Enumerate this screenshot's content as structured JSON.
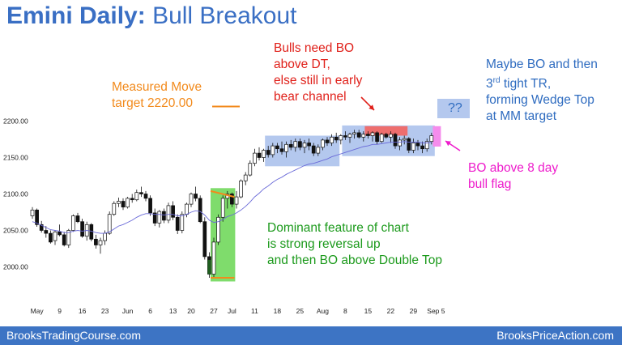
{
  "slide": {
    "title_bold": "Emini Daily:",
    "title_rest": "Bull Breakout"
  },
  "annotations": {
    "measured_move": [
      "Measured Move",
      "target 2220.00"
    ],
    "bulls_need": [
      "Bulls need BO",
      "above DT,",
      "else still in early",
      "bear channel"
    ],
    "maybe_bo": [
      "Maybe BO and then",
      "3",
      "rd",
      " tight TR,",
      "forming Wedge Top",
      "at MM target"
    ],
    "question": "??",
    "bo_above": [
      "BO above 8 day",
      "bull flag"
    ],
    "dominant": [
      "Dominant feature of chart",
      "is strong reversal up",
      "and then BO above Double Top"
    ]
  },
  "colors": {
    "title": "#3a6fc4",
    "orange": "#f28a1c",
    "red": "#e0201a",
    "blue": "#2f6cc0",
    "magenta": "#ee1ccc",
    "green": "#1c9a1c",
    "footer": "#3d74c4",
    "range_box": "#b4c8ee",
    "reversal_box": "#7fdc6c",
    "top_box": "#ee6e6e",
    "bo_box": "#f58cec",
    "ema": "#6a6ad8"
  },
  "footer": {
    "left": "BrooksTradingCourse.com",
    "right": "BrooksPriceAction.com"
  },
  "chart_data": {
    "type": "candlestick",
    "y_ticks": [
      "2000.00",
      "2050.00",
      "2100.00",
      "2150.00",
      "2200.00"
    ],
    "ylim": [
      1975,
      2240
    ],
    "x_ticks": [
      "May",
      "9",
      "16",
      "23",
      "Jun",
      "6",
      "13",
      "20",
      "27",
      "Jul",
      "11",
      "18",
      "25",
      "Aug",
      "8",
      "15",
      "22",
      "29",
      "Sep 5"
    ],
    "x_tick_index": [
      1,
      6,
      11,
      16,
      21,
      26,
      31,
      35,
      40,
      44,
      49,
      54,
      59,
      64,
      69,
      74,
      79,
      84,
      89
    ],
    "bars": [
      [
        2070,
        2082,
        2066,
        2078
      ],
      [
        2078,
        2080,
        2055,
        2058
      ],
      [
        2058,
        2063,
        2047,
        2050
      ],
      [
        2050,
        2056,
        2040,
        2046
      ],
      [
        2046,
        2050,
        2032,
        2034
      ],
      [
        2036,
        2050,
        2030,
        2048
      ],
      [
        2048,
        2058,
        2042,
        2044
      ],
      [
        2044,
        2048,
        2028,
        2030
      ],
      [
        2030,
        2052,
        2026,
        2050
      ],
      [
        2050,
        2072,
        2048,
        2070
      ],
      [
        2070,
        2074,
        2060,
        2062
      ],
      [
        2062,
        2066,
        2040,
        2042
      ],
      [
        2042,
        2062,
        2036,
        2058
      ],
      [
        2058,
        2060,
        2035,
        2038
      ],
      [
        2038,
        2044,
        2025,
        2030
      ],
      [
        2030,
        2040,
        2018,
        2036
      ],
      [
        2036,
        2050,
        2030,
        2046
      ],
      [
        2046,
        2076,
        2044,
        2072
      ],
      [
        2072,
        2090,
        2070,
        2087
      ],
      [
        2087,
        2095,
        2082,
        2090
      ],
      [
        2090,
        2094,
        2078,
        2082
      ],
      [
        2082,
        2096,
        2080,
        2094
      ],
      [
        2094,
        2100,
        2088,
        2092
      ],
      [
        2092,
        2106,
        2090,
        2102
      ],
      [
        2102,
        2110,
        2096,
        2100
      ],
      [
        2100,
        2104,
        2090,
        2094
      ],
      [
        2094,
        2098,
        2070,
        2074
      ],
      [
        2074,
        2080,
        2056,
        2060
      ],
      [
        2060,
        2078,
        2054,
        2076
      ],
      [
        2076,
        2080,
        2060,
        2064
      ],
      [
        2064,
        2088,
        2060,
        2084
      ],
      [
        2084,
        2090,
        2064,
        2068
      ],
      [
        2068,
        2072,
        2045,
        2050
      ],
      [
        2050,
        2076,
        2046,
        2072
      ],
      [
        2072,
        2088,
        2068,
        2086
      ],
      [
        2086,
        2102,
        2082,
        2100
      ],
      [
        2100,
        2110,
        2090,
        2094
      ],
      [
        2094,
        2098,
        2060,
        2062
      ],
      [
        2062,
        2068,
        2010,
        2014
      ],
      [
        2014,
        2020,
        1985,
        1990
      ],
      [
        1990,
        2040,
        1986,
        2034
      ],
      [
        2034,
        2072,
        2030,
        2068
      ],
      [
        2068,
        2098,
        2062,
        2094
      ],
      [
        2094,
        2104,
        2080,
        2100
      ],
      [
        2100,
        2102,
        2082,
        2086
      ],
      [
        2086,
        2104,
        2080,
        2096
      ],
      [
        2096,
        2120,
        2094,
        2118
      ],
      [
        2118,
        2130,
        2112,
        2126
      ],
      [
        2126,
        2146,
        2124,
        2142
      ],
      [
        2142,
        2162,
        2138,
        2156
      ],
      [
        2156,
        2164,
        2146,
        2150
      ],
      [
        2150,
        2162,
        2144,
        2160
      ],
      [
        2160,
        2166,
        2150,
        2154
      ],
      [
        2154,
        2170,
        2150,
        2166
      ],
      [
        2166,
        2170,
        2156,
        2162
      ],
      [
        2162,
        2172,
        2154,
        2158
      ],
      [
        2158,
        2172,
        2150,
        2168
      ],
      [
        2168,
        2174,
        2160,
        2164
      ],
      [
        2164,
        2176,
        2158,
        2172
      ],
      [
        2172,
        2176,
        2160,
        2164
      ],
      [
        2164,
        2174,
        2156,
        2170
      ],
      [
        2170,
        2176,
        2160,
        2166
      ],
      [
        2166,
        2170,
        2152,
        2156
      ],
      [
        2156,
        2168,
        2152,
        2164
      ],
      [
        2164,
        2176,
        2160,
        2174
      ],
      [
        2174,
        2178,
        2166,
        2170
      ],
      [
        2170,
        2182,
        2166,
        2178
      ],
      [
        2178,
        2184,
        2170,
        2174
      ],
      [
        2174,
        2182,
        2168,
        2180
      ],
      [
        2180,
        2186,
        2174,
        2178
      ],
      [
        2178,
        2184,
        2170,
        2182
      ],
      [
        2182,
        2188,
        2176,
        2184
      ],
      [
        2184,
        2188,
        2176,
        2178
      ],
      [
        2178,
        2186,
        2172,
        2182
      ],
      [
        2182,
        2186,
        2176,
        2180
      ],
      [
        2180,
        2186,
        2172,
        2184
      ],
      [
        2184,
        2186,
        2168,
        2172
      ],
      [
        2172,
        2184,
        2170,
        2182
      ],
      [
        2182,
        2184,
        2176,
        2178
      ],
      [
        2178,
        2186,
        2170,
        2182
      ],
      [
        2182,
        2184,
        2162,
        2166
      ],
      [
        2166,
        2178,
        2160,
        2174
      ],
      [
        2174,
        2180,
        2168,
        2176
      ],
      [
        2176,
        2178,
        2156,
        2160
      ],
      [
        2160,
        2176,
        2156,
        2170
      ],
      [
        2170,
        2174,
        2160,
        2166
      ],
      [
        2166,
        2172,
        2156,
        2162
      ],
      [
        2162,
        2176,
        2158,
        2172
      ],
      [
        2172,
        2184,
        2168,
        2180
      ]
    ],
    "ema": [
      2062,
      2060,
      2057,
      2054,
      2051,
      2050,
      2049,
      2047,
      2047,
      2049,
      2050,
      2049,
      2050,
      2049,
      2047,
      2046,
      2046,
      2048,
      2052,
      2056,
      2058,
      2061,
      2064,
      2068,
      2071,
      2073,
      2073,
      2072,
      2072,
      2071,
      2072,
      2072,
      2070,
      2070,
      2072,
      2075,
      2077,
      2076,
      2071,
      2064,
      2061,
      2062,
      2065,
      2069,
      2071,
      2074,
      2078,
      2083,
      2089,
      2096,
      2101,
      2107,
      2111,
      2116,
      2120,
      2123,
      2127,
      2130,
      2133,
      2136,
      2139,
      2141,
      2142,
      2144,
      2146,
      2148,
      2151,
      2153,
      2155,
      2157,
      2159,
      2161,
      2163,
      2165,
      2166,
      2168,
      2168,
      2169,
      2170,
      2171,
      2171,
      2171,
      2172,
      2171,
      2171,
      2171,
      2170,
      2170,
      2171
    ],
    "measured_move_target": 2220
  }
}
